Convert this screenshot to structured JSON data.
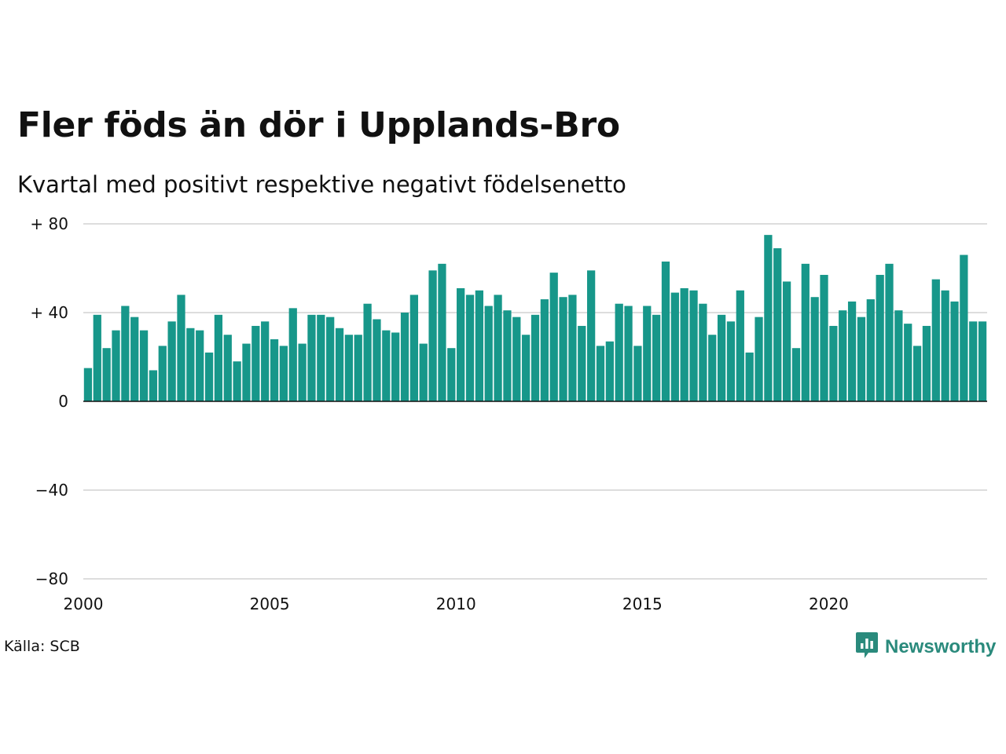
{
  "header": {
    "title": "Fler föds än dör i Upplands-Bro",
    "subtitle": "Kvartal med positivt respektive negativt födelsenetto"
  },
  "footer": {
    "source": "Källa: SCB",
    "brand": "Newsworthy",
    "brand_icon": "newsworthy-logo-icon"
  },
  "colors": {
    "positive_bar": "#17978a",
    "gridline": "#dddddd",
    "zero_line": "#111111",
    "brand": "#2a8a7c"
  },
  "chart_data": {
    "type": "bar",
    "x_start_year": 2000,
    "quarters_per_year": 4,
    "x_tick_labels": [
      "2000",
      "2005",
      "2010",
      "2015",
      "2020"
    ],
    "y_tick_labels": [
      "+ 80",
      "+ 40",
      "0",
      "−40",
      "−80"
    ],
    "y_ticks": [
      80,
      40,
      0,
      -40,
      -80
    ],
    "ylim": [
      -80,
      80
    ],
    "grid": true,
    "values": [
      15,
      39,
      24,
      32,
      43,
      38,
      32,
      14,
      25,
      36,
      48,
      33,
      32,
      22,
      39,
      30,
      18,
      26,
      34,
      36,
      28,
      25,
      42,
      26,
      39,
      39,
      38,
      33,
      30,
      30,
      44,
      37,
      32,
      31,
      40,
      48,
      26,
      59,
      62,
      24,
      51,
      48,
      50,
      43,
      48,
      41,
      38,
      30,
      39,
      46,
      58,
      47,
      48,
      34,
      59,
      25,
      27,
      44,
      43,
      25,
      43,
      39,
      63,
      49,
      51,
      50,
      44,
      30,
      39,
      36,
      50,
      22,
      38,
      75,
      69,
      54,
      24,
      62,
      47,
      57,
      34,
      41,
      45,
      38,
      46,
      57,
      62,
      41,
      35,
      25,
      34,
      55,
      50,
      45,
      66,
      36,
      36
    ]
  }
}
